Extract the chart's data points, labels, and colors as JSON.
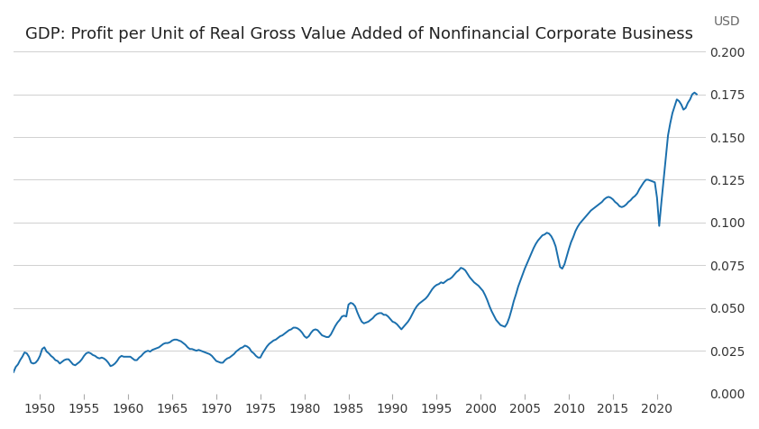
{
  "title": "GDP: Profit per Unit of Real Gross Value Added of Nonfinancial Corporate Business",
  "ylabel": "USD",
  "line_color": "#1a6fad",
  "background_color": "#ffffff",
  "grid_color": "#d0d0d0",
  "xlim": [
    1947.0,
    2025.5
  ],
  "ylim": [
    0.0,
    0.2
  ],
  "yticks": [
    0.0,
    0.025,
    0.05,
    0.075,
    0.1,
    0.125,
    0.15,
    0.175,
    0.2
  ],
  "xticks": [
    1950,
    1955,
    1960,
    1965,
    1970,
    1975,
    1980,
    1985,
    1990,
    1995,
    2000,
    2005,
    2010,
    2015,
    2020
  ],
  "title_fontsize": 13,
  "tick_fontsize": 10,
  "line_width": 1.4,
  "raw_data": [
    [
      1947.0,
      0.0125
    ],
    [
      1947.25,
      0.0155
    ],
    [
      1947.5,
      0.017
    ],
    [
      1947.75,
      0.0195
    ],
    [
      1948.0,
      0.0215
    ],
    [
      1948.25,
      0.024
    ],
    [
      1948.5,
      0.0235
    ],
    [
      1948.75,
      0.0215
    ],
    [
      1949.0,
      0.018
    ],
    [
      1949.25,
      0.0175
    ],
    [
      1949.5,
      0.018
    ],
    [
      1949.75,
      0.0195
    ],
    [
      1950.0,
      0.022
    ],
    [
      1950.25,
      0.026
    ],
    [
      1950.5,
      0.027
    ],
    [
      1950.75,
      0.0245
    ],
    [
      1951.0,
      0.0235
    ],
    [
      1951.25,
      0.022
    ],
    [
      1951.5,
      0.021
    ],
    [
      1951.75,
      0.0195
    ],
    [
      1952.0,
      0.019
    ],
    [
      1952.25,
      0.0175
    ],
    [
      1952.5,
      0.0185
    ],
    [
      1952.75,
      0.0195
    ],
    [
      1953.0,
      0.02
    ],
    [
      1953.25,
      0.02
    ],
    [
      1953.5,
      0.0185
    ],
    [
      1953.75,
      0.017
    ],
    [
      1954.0,
      0.0165
    ],
    [
      1954.25,
      0.0175
    ],
    [
      1954.5,
      0.0185
    ],
    [
      1954.75,
      0.02
    ],
    [
      1955.0,
      0.022
    ],
    [
      1955.25,
      0.0235
    ],
    [
      1955.5,
      0.024
    ],
    [
      1955.75,
      0.0235
    ],
    [
      1956.0,
      0.0225
    ],
    [
      1956.25,
      0.022
    ],
    [
      1956.5,
      0.021
    ],
    [
      1956.75,
      0.0205
    ],
    [
      1957.0,
      0.021
    ],
    [
      1957.25,
      0.0205
    ],
    [
      1957.5,
      0.0195
    ],
    [
      1957.75,
      0.018
    ],
    [
      1958.0,
      0.016
    ],
    [
      1958.25,
      0.0165
    ],
    [
      1958.5,
      0.0175
    ],
    [
      1958.75,
      0.019
    ],
    [
      1959.0,
      0.021
    ],
    [
      1959.25,
      0.022
    ],
    [
      1959.5,
      0.0215
    ],
    [
      1959.75,
      0.0215
    ],
    [
      1960.0,
      0.0215
    ],
    [
      1960.25,
      0.0215
    ],
    [
      1960.5,
      0.0205
    ],
    [
      1960.75,
      0.0195
    ],
    [
      1961.0,
      0.0195
    ],
    [
      1961.25,
      0.021
    ],
    [
      1961.5,
      0.022
    ],
    [
      1961.75,
      0.0235
    ],
    [
      1962.0,
      0.0245
    ],
    [
      1962.25,
      0.025
    ],
    [
      1962.5,
      0.0245
    ],
    [
      1962.75,
      0.0255
    ],
    [
      1963.0,
      0.026
    ],
    [
      1963.25,
      0.0265
    ],
    [
      1963.5,
      0.027
    ],
    [
      1963.75,
      0.028
    ],
    [
      1964.0,
      0.029
    ],
    [
      1964.25,
      0.0295
    ],
    [
      1964.5,
      0.0295
    ],
    [
      1964.75,
      0.03
    ],
    [
      1965.0,
      0.031
    ],
    [
      1965.25,
      0.0315
    ],
    [
      1965.5,
      0.0315
    ],
    [
      1965.75,
      0.031
    ],
    [
      1966.0,
      0.0305
    ],
    [
      1966.25,
      0.0295
    ],
    [
      1966.5,
      0.0285
    ],
    [
      1966.75,
      0.027
    ],
    [
      1967.0,
      0.026
    ],
    [
      1967.25,
      0.026
    ],
    [
      1967.5,
      0.0255
    ],
    [
      1967.75,
      0.025
    ],
    [
      1968.0,
      0.0255
    ],
    [
      1968.25,
      0.025
    ],
    [
      1968.5,
      0.0245
    ],
    [
      1968.75,
      0.024
    ],
    [
      1969.0,
      0.0235
    ],
    [
      1969.25,
      0.023
    ],
    [
      1969.5,
      0.022
    ],
    [
      1969.75,
      0.0205
    ],
    [
      1970.0,
      0.019
    ],
    [
      1970.25,
      0.0185
    ],
    [
      1970.5,
      0.018
    ],
    [
      1970.75,
      0.018
    ],
    [
      1971.0,
      0.0195
    ],
    [
      1971.25,
      0.0205
    ],
    [
      1971.5,
      0.021
    ],
    [
      1971.75,
      0.022
    ],
    [
      1972.0,
      0.023
    ],
    [
      1972.25,
      0.0245
    ],
    [
      1972.5,
      0.0255
    ],
    [
      1972.75,
      0.0265
    ],
    [
      1973.0,
      0.027
    ],
    [
      1973.25,
      0.028
    ],
    [
      1973.5,
      0.0275
    ],
    [
      1973.75,
      0.0265
    ],
    [
      1974.0,
      0.0245
    ],
    [
      1974.25,
      0.0235
    ],
    [
      1974.5,
      0.022
    ],
    [
      1974.75,
      0.021
    ],
    [
      1975.0,
      0.021
    ],
    [
      1975.25,
      0.0235
    ],
    [
      1975.5,
      0.0255
    ],
    [
      1975.75,
      0.0275
    ],
    [
      1976.0,
      0.029
    ],
    [
      1976.25,
      0.03
    ],
    [
      1976.5,
      0.031
    ],
    [
      1976.75,
      0.0315
    ],
    [
      1977.0,
      0.0325
    ],
    [
      1977.25,
      0.0335
    ],
    [
      1977.5,
      0.034
    ],
    [
      1977.75,
      0.035
    ],
    [
      1978.0,
      0.036
    ],
    [
      1978.25,
      0.037
    ],
    [
      1978.5,
      0.0375
    ],
    [
      1978.75,
      0.0385
    ],
    [
      1979.0,
      0.0385
    ],
    [
      1979.25,
      0.038
    ],
    [
      1979.5,
      0.037
    ],
    [
      1979.75,
      0.0355
    ],
    [
      1980.0,
      0.0335
    ],
    [
      1980.25,
      0.0325
    ],
    [
      1980.5,
      0.0335
    ],
    [
      1980.75,
      0.0355
    ],
    [
      1981.0,
      0.037
    ],
    [
      1981.25,
      0.0375
    ],
    [
      1981.5,
      0.037
    ],
    [
      1981.75,
      0.0355
    ],
    [
      1982.0,
      0.034
    ],
    [
      1982.25,
      0.0335
    ],
    [
      1982.5,
      0.033
    ],
    [
      1982.75,
      0.033
    ],
    [
      1983.0,
      0.0345
    ],
    [
      1983.25,
      0.037
    ],
    [
      1983.5,
      0.0395
    ],
    [
      1983.75,
      0.0415
    ],
    [
      1984.0,
      0.043
    ],
    [
      1984.25,
      0.045
    ],
    [
      1984.5,
      0.0455
    ],
    [
      1984.75,
      0.045
    ],
    [
      1985.0,
      0.052
    ],
    [
      1985.25,
      0.053
    ],
    [
      1985.5,
      0.0525
    ],
    [
      1985.75,
      0.051
    ],
    [
      1986.0,
      0.0475
    ],
    [
      1986.25,
      0.0445
    ],
    [
      1986.5,
      0.042
    ],
    [
      1986.75,
      0.041
    ],
    [
      1987.0,
      0.0415
    ],
    [
      1987.25,
      0.042
    ],
    [
      1987.5,
      0.043
    ],
    [
      1987.75,
      0.044
    ],
    [
      1988.0,
      0.0455
    ],
    [
      1988.25,
      0.0465
    ],
    [
      1988.5,
      0.047
    ],
    [
      1988.75,
      0.047
    ],
    [
      1989.0,
      0.046
    ],
    [
      1989.25,
      0.046
    ],
    [
      1989.5,
      0.045
    ],
    [
      1989.75,
      0.0435
    ],
    [
      1990.0,
      0.042
    ],
    [
      1990.25,
      0.0415
    ],
    [
      1990.5,
      0.0405
    ],
    [
      1990.75,
      0.039
    ],
    [
      1991.0,
      0.0375
    ],
    [
      1991.25,
      0.039
    ],
    [
      1991.5,
      0.0405
    ],
    [
      1991.75,
      0.042
    ],
    [
      1992.0,
      0.044
    ],
    [
      1992.25,
      0.0465
    ],
    [
      1992.5,
      0.049
    ],
    [
      1992.75,
      0.051
    ],
    [
      1993.0,
      0.0525
    ],
    [
      1993.25,
      0.0535
    ],
    [
      1993.5,
      0.0545
    ],
    [
      1993.75,
      0.0555
    ],
    [
      1994.0,
      0.057
    ],
    [
      1994.25,
      0.059
    ],
    [
      1994.5,
      0.061
    ],
    [
      1994.75,
      0.0625
    ],
    [
      1995.0,
      0.0635
    ],
    [
      1995.25,
      0.064
    ],
    [
      1995.5,
      0.065
    ],
    [
      1995.75,
      0.0645
    ],
    [
      1996.0,
      0.0655
    ],
    [
      1996.25,
      0.0665
    ],
    [
      1996.5,
      0.067
    ],
    [
      1996.75,
      0.068
    ],
    [
      1997.0,
      0.0695
    ],
    [
      1997.25,
      0.071
    ],
    [
      1997.5,
      0.072
    ],
    [
      1997.75,
      0.0735
    ],
    [
      1998.0,
      0.073
    ],
    [
      1998.25,
      0.072
    ],
    [
      1998.5,
      0.07
    ],
    [
      1998.75,
      0.068
    ],
    [
      1999.0,
      0.0665
    ],
    [
      1999.25,
      0.065
    ],
    [
      1999.5,
      0.064
    ],
    [
      1999.75,
      0.063
    ],
    [
      2000.0,
      0.0615
    ],
    [
      2000.25,
      0.06
    ],
    [
      2000.5,
      0.0575
    ],
    [
      2000.75,
      0.0545
    ],
    [
      2001.0,
      0.051
    ],
    [
      2001.25,
      0.048
    ],
    [
      2001.5,
      0.0455
    ],
    [
      2001.75,
      0.043
    ],
    [
      2002.0,
      0.0415
    ],
    [
      2002.25,
      0.04
    ],
    [
      2002.5,
      0.0395
    ],
    [
      2002.75,
      0.039
    ],
    [
      2003.0,
      0.041
    ],
    [
      2003.25,
      0.0445
    ],
    [
      2003.5,
      0.049
    ],
    [
      2003.75,
      0.054
    ],
    [
      2004.0,
      0.058
    ],
    [
      2004.25,
      0.0625
    ],
    [
      2004.5,
      0.066
    ],
    [
      2004.75,
      0.0695
    ],
    [
      2005.0,
      0.073
    ],
    [
      2005.25,
      0.076
    ],
    [
      2005.5,
      0.079
    ],
    [
      2005.75,
      0.082
    ],
    [
      2006.0,
      0.085
    ],
    [
      2006.25,
      0.0875
    ],
    [
      2006.5,
      0.0895
    ],
    [
      2006.75,
      0.091
    ],
    [
      2007.0,
      0.0925
    ],
    [
      2007.25,
      0.093
    ],
    [
      2007.5,
      0.094
    ],
    [
      2007.75,
      0.0935
    ],
    [
      2008.0,
      0.092
    ],
    [
      2008.25,
      0.0895
    ],
    [
      2008.5,
      0.086
    ],
    [
      2008.75,
      0.08
    ],
    [
      2009.0,
      0.074
    ],
    [
      2009.25,
      0.073
    ],
    [
      2009.5,
      0.0755
    ],
    [
      2009.75,
      0.08
    ],
    [
      2010.0,
      0.0845
    ],
    [
      2010.25,
      0.0885
    ],
    [
      2010.5,
      0.0915
    ],
    [
      2010.75,
      0.095
    ],
    [
      2011.0,
      0.0975
    ],
    [
      2011.25,
      0.0995
    ],
    [
      2011.5,
      0.101
    ],
    [
      2011.75,
      0.1025
    ],
    [
      2012.0,
      0.104
    ],
    [
      2012.25,
      0.1055
    ],
    [
      2012.5,
      0.107
    ],
    [
      2012.75,
      0.108
    ],
    [
      2013.0,
      0.109
    ],
    [
      2013.25,
      0.11
    ],
    [
      2013.5,
      0.111
    ],
    [
      2013.75,
      0.112
    ],
    [
      2014.0,
      0.1135
    ],
    [
      2014.25,
      0.1145
    ],
    [
      2014.5,
      0.115
    ],
    [
      2014.75,
      0.1145
    ],
    [
      2015.0,
      0.1135
    ],
    [
      2015.25,
      0.112
    ],
    [
      2015.5,
      0.111
    ],
    [
      2015.75,
      0.1095
    ],
    [
      2016.0,
      0.109
    ],
    [
      2016.25,
      0.1095
    ],
    [
      2016.5,
      0.1105
    ],
    [
      2016.75,
      0.112
    ],
    [
      2017.0,
      0.113
    ],
    [
      2017.25,
      0.1145
    ],
    [
      2017.5,
      0.1155
    ],
    [
      2017.75,
      0.117
    ],
    [
      2018.0,
      0.1195
    ],
    [
      2018.25,
      0.1215
    ],
    [
      2018.5,
      0.1235
    ],
    [
      2018.75,
      0.125
    ],
    [
      2019.0,
      0.125
    ],
    [
      2019.25,
      0.1245
    ],
    [
      2019.5,
      0.124
    ],
    [
      2019.75,
      0.1235
    ],
    [
      2020.0,
      0.1145
    ],
    [
      2020.25,
      0.098
    ],
    [
      2020.5,
      0.112
    ],
    [
      2020.75,
      0.125
    ],
    [
      2021.0,
      0.138
    ],
    [
      2021.25,
      0.151
    ],
    [
      2021.5,
      0.158
    ],
    [
      2021.75,
      0.164
    ],
    [
      2022.0,
      0.168
    ],
    [
      2022.25,
      0.172
    ],
    [
      2022.5,
      0.171
    ],
    [
      2022.75,
      0.169
    ],
    [
      2023.0,
      0.166
    ],
    [
      2023.25,
      0.167
    ],
    [
      2023.5,
      0.17
    ],
    [
      2023.75,
      0.172
    ],
    [
      2024.0,
      0.175
    ],
    [
      2024.25,
      0.176
    ],
    [
      2024.5,
      0.175
    ]
  ]
}
